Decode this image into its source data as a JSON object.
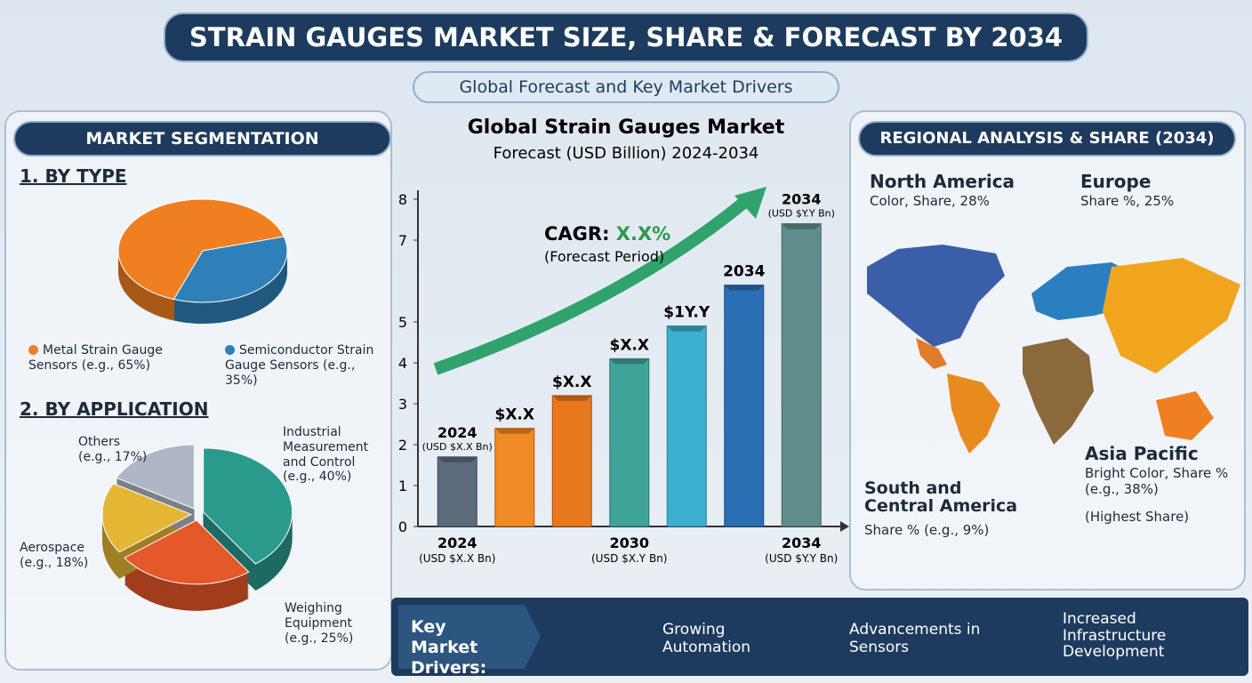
{
  "header": {
    "title": "STRAIN GAUGES MARKET SIZE, SHARE & FORECAST BY 2034",
    "subtitle": "Global Forecast and Key Market Drivers"
  },
  "segmentation": {
    "heading": "MARKET SEGMENTATION",
    "by_type": "1. BY TYPE",
    "by_application": "2. BY APPLICATION"
  },
  "chart_data": [
    {
      "type": "pie",
      "categories": [
        "Metal Strain Gauge Sensors (e.g., 65%)",
        "Semiconductor Strain Gauge Sensors (e.g., 35%)"
      ],
      "values": [
        65,
        35
      ],
      "colors": [
        "#f07f22",
        "#2f80b8"
      ]
    },
    {
      "type": "pie",
      "categories": [
        "Industrial Measurement and Control (e.g., 40%)",
        "Weighing Equipment (e.g., 25%)",
        "Aerospace (e.g., 18%)",
        "Others (e.g., 17%)"
      ],
      "values": [
        40,
        25,
        18,
        17
      ],
      "colors": [
        "#2a9a8c",
        "#e5582a",
        "#e3b634",
        "#aeb7c3"
      ]
    },
    {
      "type": "bar",
      "title": "Global Strain Gauges Market",
      "subtitle": "Forecast (USD Billion) 2024-2034",
      "categories": [
        "2024",
        null,
        null,
        "2030",
        null,
        null,
        "2034"
      ],
      "category_notes": [
        "(USD $X.X Bn)",
        null,
        null,
        "(USD $X.Y Bn)",
        null,
        null,
        "(USD $Y.Y Bn)"
      ],
      "values": [
        1.7,
        2.4,
        3.2,
        4.1,
        4.9,
        5.9,
        7.4
      ],
      "bar_labels": [
        "2024",
        "$X.X",
        "$X.X",
        "$X.X",
        "$1Y.Y",
        "2034",
        "2034"
      ],
      "bar_notes": [
        "(USD $X.X Bn)",
        null,
        null,
        null,
        null,
        null,
        "(USD $Y.Y Bn)"
      ],
      "colors": [
        "#5b6b7c",
        "#f08a24",
        "#e8781e",
        "#3fa39a",
        "#3bb0cf",
        "#2a6fb3",
        "#5f8d8a"
      ],
      "ylim": [
        0,
        8
      ],
      "yticks": [
        0,
        1,
        2,
        3,
        4,
        5,
        7,
        8
      ],
      "annotation": {
        "label": "CAGR:",
        "value": "X.X%",
        "note": "(Forecast Period)"
      }
    }
  ],
  "regional": {
    "heading": "REGIONAL ANALYSIS & SHARE (2034)",
    "regions": [
      {
        "name": "North America",
        "share": "Color, Share, 28%"
      },
      {
        "name": "Europe",
        "share": "Share %, 25%"
      },
      {
        "name": "South and Central America",
        "share": "Share % (e.g., 9%)"
      },
      {
        "name": "Asia Pacific",
        "share": "Bright Color, Share % (e.g., 38%)",
        "note": "(Highest Share)"
      }
    ]
  },
  "drivers": {
    "heading": "Key Market Drivers:",
    "items": [
      "Growing Automation",
      "Advancements in Sensors",
      "Increased Infrastructure Development"
    ]
  }
}
